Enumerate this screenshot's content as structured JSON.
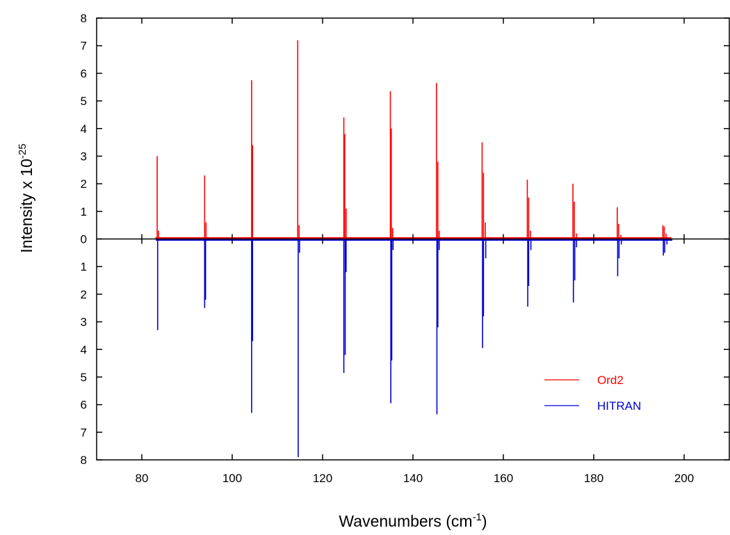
{
  "chart_data": {
    "type": "line",
    "xlabel": "Wavenumbers (cm",
    "xlabel_sup": "-1",
    "xlabel_suffix": ")",
    "ylabel": "Intensity x 10",
    "ylabel_sup": "-25",
    "xlim": [
      70,
      210
    ],
    "ylim": [
      -8,
      8
    ],
    "x_ticks": [
      80,
      100,
      120,
      140,
      160,
      180,
      200
    ],
    "x_tick_labels": [
      "80",
      "100",
      "120",
      "140",
      "160",
      "180",
      "200"
    ],
    "y_ticks": [
      8,
      7,
      6,
      5,
      4,
      3,
      2,
      1,
      0,
      -1,
      -2,
      -3,
      -4,
      -5,
      -6,
      -7,
      -8
    ],
    "y_tick_labels": [
      "8",
      "7",
      "6",
      "5",
      "4",
      "3",
      "2",
      "1",
      "0",
      "1",
      "2",
      "3",
      "4",
      "5",
      "6",
      "7",
      "8"
    ],
    "grid": false,
    "legend_position": "lower-right",
    "series": [
      {
        "name": "Ord2",
        "color": "#ff0000",
        "direction": "up",
        "x": [
          83.4,
          83.7,
          93.9,
          94.2,
          104.3,
          104.5,
          114.5,
          114.8,
          124.7,
          124.9,
          125.2,
          135.0,
          135.2,
          135.5,
          145.2,
          145.5,
          145.8,
          155.3,
          155.6,
          156.0,
          165.3,
          165.6,
          166.0,
          175.4,
          175.7,
          176.2,
          185.2,
          185.5,
          186.0,
          195.3,
          195.6,
          196.0
        ],
        "values": [
          3.0,
          0.3,
          2.3,
          0.6,
          5.75,
          3.4,
          7.2,
          0.5,
          4.4,
          3.8,
          1.1,
          5.35,
          4.0,
          0.4,
          5.65,
          2.8,
          0.3,
          3.5,
          2.4,
          0.6,
          2.15,
          1.5,
          0.3,
          2.0,
          1.35,
          0.2,
          1.15,
          0.55,
          0.15,
          0.5,
          0.45,
          0.2
        ]
      },
      {
        "name": "HITRAN",
        "color": "#0000d6",
        "direction": "down",
        "x": [
          83.5,
          93.9,
          94.1,
          104.3,
          104.5,
          114.6,
          114.9,
          124.7,
          125.0,
          125.2,
          135.1,
          135.3,
          135.6,
          145.3,
          145.5,
          145.8,
          155.4,
          155.6,
          156.1,
          165.4,
          165.6,
          166.1,
          175.5,
          175.8,
          176.2,
          185.3,
          185.6,
          186.1,
          195.4,
          195.7,
          196.2
        ],
        "values": [
          3.3,
          2.5,
          2.2,
          6.3,
          3.7,
          7.9,
          0.5,
          4.85,
          4.2,
          1.2,
          5.95,
          4.4,
          0.4,
          6.35,
          3.2,
          0.4,
          3.95,
          2.8,
          0.7,
          2.45,
          1.7,
          0.4,
          2.3,
          1.5,
          0.3,
          1.35,
          0.7,
          0.2,
          0.6,
          0.5,
          0.2
        ]
      }
    ]
  }
}
